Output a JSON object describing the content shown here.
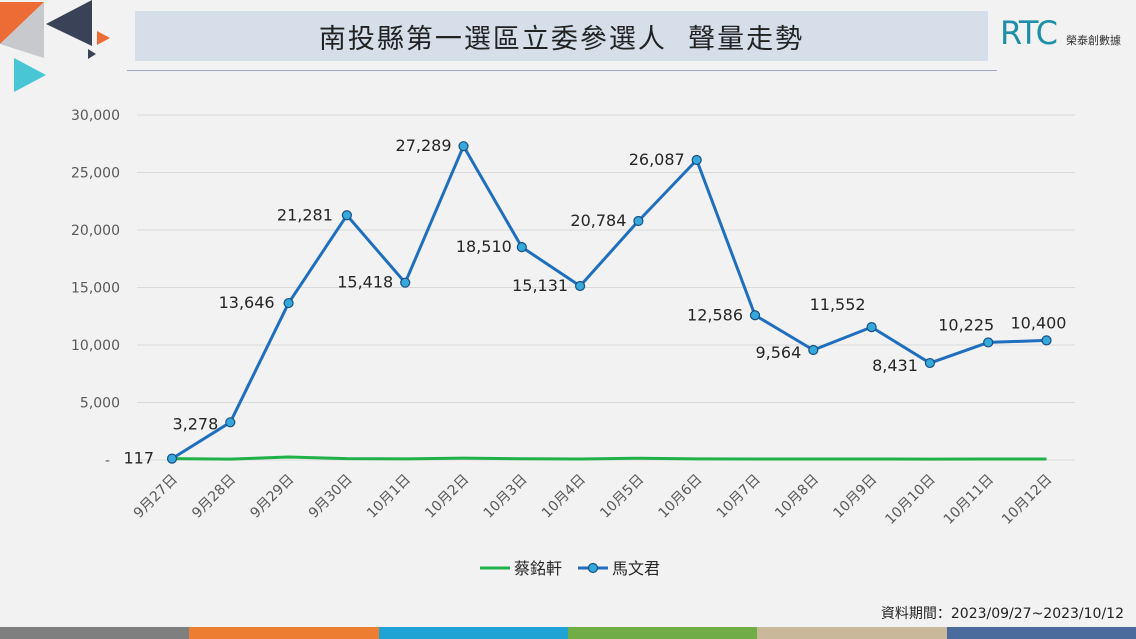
{
  "title": "南投縣第一選區立委參選人  聲量走勢",
  "logo": {
    "main": "RTC",
    "sub": "榮泰創數據"
  },
  "footnote": "資料期間：2023/09/27~2023/10/12",
  "colors": {
    "deco_orange": "#ed6b35",
    "deco_navy": "#3a4257",
    "deco_teal": "#48c6d6",
    "bottom_bar": [
      "#7f7f7f",
      "#ed7d31",
      "#1fa3d4",
      "#70ad47",
      "#c9b99a",
      "#4a6b9c"
    ]
  },
  "chart_data": {
    "type": "line",
    "categories": [
      "9月27日",
      "9月28日",
      "9月29日",
      "9月30日",
      "10月1日",
      "10月2日",
      "10月3日",
      "10月4日",
      "10月5日",
      "10月6日",
      "10月7日",
      "10月8日",
      "10月9日",
      "10月10日",
      "10月11日",
      "10月12日"
    ],
    "ylim": [
      0,
      30000
    ],
    "yticks": [
      {
        "value": 0,
        "label": "-"
      },
      {
        "value": 5000,
        "label": "5,000"
      },
      {
        "value": 10000,
        "label": "10,000"
      },
      {
        "value": 15000,
        "label": "15,000"
      },
      {
        "value": 20000,
        "label": "20,000"
      },
      {
        "value": 25000,
        "label": "25,000"
      },
      {
        "value": 30000,
        "label": "30,000"
      }
    ],
    "grid": true,
    "legend": "bottom",
    "series": [
      {
        "name": "蔡銘軒",
        "color": "#1fb24a",
        "marker": false,
        "values": [
          117,
          80,
          260,
          120,
          100,
          160,
          110,
          90,
          150,
          100,
          90,
          90,
          90,
          80,
          90,
          90
        ]
      },
      {
        "name": "馬文君",
        "color": "#1f6fbe",
        "marker": true,
        "values": [
          117,
          3278,
          13646,
          21281,
          15418,
          27289,
          18510,
          15131,
          20784,
          26087,
          12586,
          9564,
          11552,
          8431,
          10225,
          10400
        ],
        "labels": [
          "117",
          "3,278",
          "13,646",
          "21,281",
          "15,418",
          "27,289",
          "18,510",
          "15,131",
          "20,784",
          "26,087",
          "12,586",
          "9,564",
          "11,552",
          "8,431",
          "10,225",
          "10,400"
        ]
      }
    ]
  }
}
